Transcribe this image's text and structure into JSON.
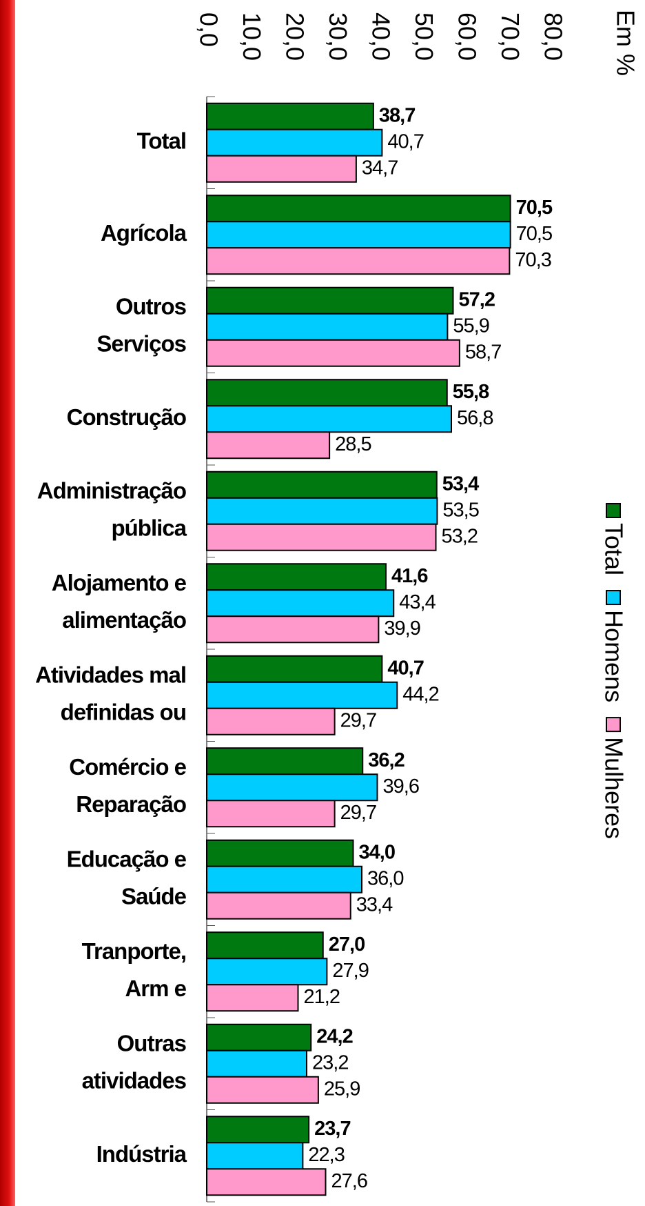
{
  "chart_data": {
    "type": "bar",
    "orientation": "horizontal",
    "unit_label": "Em %",
    "categories": [
      [
        "Total"
      ],
      [
        "Agrícola"
      ],
      [
        "Outros",
        "Serviços"
      ],
      [
        "Construção"
      ],
      [
        "Administração",
        "pública"
      ],
      [
        "Alojamento e",
        "alimentação"
      ],
      [
        "Atividades mal",
        "definidas ou"
      ],
      [
        "Comércio e",
        "Reparação"
      ],
      [
        "Educação e",
        "Saúde"
      ],
      [
        "Tranporte,",
        "Arm e"
      ],
      [
        "Outras",
        "atividades"
      ],
      [
        "Indústria"
      ]
    ],
    "series": [
      {
        "name": "Total",
        "color": "#007a10",
        "bold_labels": true,
        "values": [
          38.7,
          70.5,
          57.2,
          55.8,
          53.4,
          41.6,
          40.7,
          36.2,
          34.0,
          27.0,
          24.2,
          23.7
        ],
        "value_labels": [
          "38,7",
          "70,5",
          "57,2",
          "55,8",
          "53,4",
          "41,6",
          "40,7",
          "36,2",
          "34,0",
          "27,0",
          "24,2",
          "23,7"
        ]
      },
      {
        "name": "Homens",
        "color": "#00ccff",
        "values": [
          40.7,
          70.5,
          55.9,
          56.8,
          53.5,
          43.4,
          44.2,
          39.6,
          36.0,
          27.9,
          23.2,
          22.3
        ],
        "value_labels": [
          "40,7",
          "70,5",
          "55,9",
          "56,8",
          "53,5",
          "43,4",
          "44,2",
          "39,6",
          "36,0",
          "27,9",
          "23,2",
          "22,3"
        ]
      },
      {
        "name": "Mulheres",
        "color": "#ff99cc",
        "values": [
          34.7,
          70.3,
          58.7,
          28.5,
          53.2,
          39.9,
          29.7,
          29.7,
          33.4,
          21.2,
          25.9,
          27.6
        ],
        "value_labels": [
          "34,7",
          "70,3",
          "58,7",
          "28,5",
          "53,2",
          "39,9",
          "29,7",
          "29,7",
          "33,4",
          "21,2",
          "25,9",
          "27,6"
        ]
      }
    ],
    "xlim": [
      0,
      80
    ],
    "xticks": [
      {
        "value": 0,
        "label": "0,0"
      },
      {
        "value": 10,
        "label": "10,0"
      },
      {
        "value": 20,
        "label": "20,0"
      },
      {
        "value": 30,
        "label": "30,0"
      },
      {
        "value": 40,
        "label": "40,0"
      },
      {
        "value": 50,
        "label": "50,0"
      },
      {
        "value": 60,
        "label": "60,0"
      },
      {
        "value": 70,
        "label": "70,0"
      },
      {
        "value": 80,
        "label": "80,0"
      }
    ],
    "legend": "right"
  }
}
